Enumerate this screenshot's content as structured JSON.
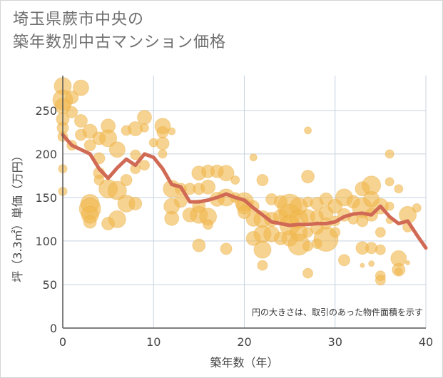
{
  "title_line1": "埼玉県蕨市中央の",
  "title_line2": "築年数別中古マンション価格",
  "chart_data": {
    "type": "scatter",
    "xlabel": "築年数（年）",
    "ylabel": "坪（3.3㎡）単価（万円）",
    "xlim": [
      0,
      40
    ],
    "ylim": [
      0,
      290
    ],
    "xticks": [
      "0",
      "10",
      "20",
      "30",
      "40"
    ],
    "yticks": [
      "0",
      "50",
      "100",
      "150",
      "200",
      "250"
    ],
    "xtick_values": [
      0,
      10,
      20,
      30,
      40
    ],
    "ytick_values": [
      0,
      50,
      100,
      150,
      200,
      250
    ],
    "grid": true,
    "annotation": "円の大きさは、取引のあった物件面積を示す",
    "colors": {
      "bubble_fill": "#f0b84e",
      "bubble_stroke": "#e8a93a",
      "line": "#d06a55",
      "grid": "#c8d3e0",
      "plot_border": "#555555"
    },
    "series": [
      {
        "type": "bubble",
        "points": [
          {
            "x": 0,
            "y": 278,
            "s": 12
          },
          {
            "x": 0,
            "y": 262,
            "s": 14
          },
          {
            "x": 0,
            "y": 255,
            "s": 11
          },
          {
            "x": 0,
            "y": 240,
            "s": 9
          },
          {
            "x": 0,
            "y": 230,
            "s": 8
          },
          {
            "x": 0,
            "y": 220,
            "s": 7
          },
          {
            "x": 0,
            "y": 183,
            "s": 6
          },
          {
            "x": 0,
            "y": 157,
            "s": 6
          },
          {
            "x": 1,
            "y": 265,
            "s": 9
          },
          {
            "x": 1,
            "y": 248,
            "s": 8
          },
          {
            "x": 1,
            "y": 210,
            "s": 7
          },
          {
            "x": 2,
            "y": 276,
            "s": 11
          },
          {
            "x": 2,
            "y": 238,
            "s": 9
          },
          {
            "x": 2,
            "y": 222,
            "s": 8
          },
          {
            "x": 3,
            "y": 226,
            "s": 10
          },
          {
            "x": 3,
            "y": 210,
            "s": 8
          },
          {
            "x": 3,
            "y": 143,
            "s": 13
          },
          {
            "x": 3,
            "y": 137,
            "s": 15
          },
          {
            "x": 3,
            "y": 130,
            "s": 12
          },
          {
            "x": 3,
            "y": 122,
            "s": 9
          },
          {
            "x": 4,
            "y": 218,
            "s": 9
          },
          {
            "x": 4,
            "y": 195,
            "s": 8
          },
          {
            "x": 4,
            "y": 178,
            "s": 8
          },
          {
            "x": 4,
            "y": 170,
            "s": 7
          },
          {
            "x": 5,
            "y": 232,
            "s": 10
          },
          {
            "x": 5,
            "y": 218,
            "s": 12
          },
          {
            "x": 5,
            "y": 160,
            "s": 13
          },
          {
            "x": 5,
            "y": 120,
            "s": 9
          },
          {
            "x": 6,
            "y": 205,
            "s": 11
          },
          {
            "x": 6,
            "y": 158,
            "s": 13
          },
          {
            "x": 6,
            "y": 125,
            "s": 12
          },
          {
            "x": 7,
            "y": 227,
            "s": 7
          },
          {
            "x": 7,
            "y": 170,
            "s": 8
          },
          {
            "x": 7,
            "y": 143,
            "s": 12
          },
          {
            "x": 8,
            "y": 229,
            "s": 10
          },
          {
            "x": 8,
            "y": 199,
            "s": 7
          },
          {
            "x": 8,
            "y": 183,
            "s": 7
          },
          {
            "x": 8,
            "y": 143,
            "s": 9
          },
          {
            "x": 9,
            "y": 242,
            "s": 10
          },
          {
            "x": 9,
            "y": 230,
            "s": 6
          },
          {
            "x": 9,
            "y": 187,
            "s": 7
          },
          {
            "x": 10,
            "y": 213,
            "s": 6
          },
          {
            "x": 11,
            "y": 232,
            "s": 11
          },
          {
            "x": 11,
            "y": 225,
            "s": 8
          },
          {
            "x": 11,
            "y": 212,
            "s": 9
          },
          {
            "x": 11,
            "y": 200,
            "s": 6
          },
          {
            "x": 12,
            "y": 226,
            "s": 5
          },
          {
            "x": 12,
            "y": 160,
            "s": 12
          },
          {
            "x": 12,
            "y": 140,
            "s": 11
          },
          {
            "x": 12,
            "y": 126,
            "s": 10
          },
          {
            "x": 13,
            "y": 160,
            "s": 8
          },
          {
            "x": 13,
            "y": 146,
            "s": 9
          },
          {
            "x": 14,
            "y": 160,
            "s": 8
          },
          {
            "x": 14,
            "y": 130,
            "s": 10
          },
          {
            "x": 15,
            "y": 178,
            "s": 10
          },
          {
            "x": 15,
            "y": 160,
            "s": 8
          },
          {
            "x": 15,
            "y": 140,
            "s": 9
          },
          {
            "x": 15,
            "y": 130,
            "s": 12
          },
          {
            "x": 15,
            "y": 95,
            "s": 9
          },
          {
            "x": 16,
            "y": 180,
            "s": 9
          },
          {
            "x": 16,
            "y": 162,
            "s": 10
          },
          {
            "x": 16,
            "y": 128,
            "s": 12
          },
          {
            "x": 16,
            "y": 119,
            "s": 7
          },
          {
            "x": 17,
            "y": 180,
            "s": 9
          },
          {
            "x": 17,
            "y": 148,
            "s": 10
          },
          {
            "x": 18,
            "y": 178,
            "s": 11
          },
          {
            "x": 18,
            "y": 150,
            "s": 12
          },
          {
            "x": 18,
            "y": 91,
            "s": 8
          },
          {
            "x": 19,
            "y": 170,
            "s": 6
          },
          {
            "x": 19,
            "y": 150,
            "s": 7
          },
          {
            "x": 20,
            "y": 145,
            "s": 13
          },
          {
            "x": 20,
            "y": 140,
            "s": 11
          },
          {
            "x": 20,
            "y": 133,
            "s": 9
          },
          {
            "x": 21,
            "y": 196,
            "s": 5
          },
          {
            "x": 21,
            "y": 140,
            "s": 8
          },
          {
            "x": 21,
            "y": 125,
            "s": 10
          },
          {
            "x": 21,
            "y": 103,
            "s": 10
          },
          {
            "x": 22,
            "y": 170,
            "s": 8
          },
          {
            "x": 22,
            "y": 125,
            "s": 12
          },
          {
            "x": 22,
            "y": 108,
            "s": 12
          },
          {
            "x": 22,
            "y": 90,
            "s": 12
          },
          {
            "x": 22,
            "y": 72,
            "s": 7
          },
          {
            "x": 23,
            "y": 148,
            "s": 8
          },
          {
            "x": 23,
            "y": 125,
            "s": 10
          },
          {
            "x": 23,
            "y": 108,
            "s": 11
          },
          {
            "x": 24,
            "y": 145,
            "s": 9
          },
          {
            "x": 24,
            "y": 128,
            "s": 10
          },
          {
            "x": 24,
            "y": 103,
            "s": 9
          },
          {
            "x": 25,
            "y": 140,
            "s": 17
          },
          {
            "x": 25,
            "y": 130,
            "s": 15
          },
          {
            "x": 25,
            "y": 118,
            "s": 14
          },
          {
            "x": 25,
            "y": 103,
            "s": 11
          },
          {
            "x": 26,
            "y": 140,
            "s": 12
          },
          {
            "x": 26,
            "y": 125,
            "s": 13
          },
          {
            "x": 26,
            "y": 110,
            "s": 12
          },
          {
            "x": 26,
            "y": 96,
            "s": 15
          },
          {
            "x": 27,
            "y": 227,
            "s": 5
          },
          {
            "x": 27,
            "y": 174,
            "s": 9
          },
          {
            "x": 27,
            "y": 145,
            "s": 7
          },
          {
            "x": 27,
            "y": 128,
            "s": 10
          },
          {
            "x": 27,
            "y": 110,
            "s": 7
          },
          {
            "x": 27,
            "y": 94,
            "s": 7
          },
          {
            "x": 27,
            "y": 63,
            "s": 7
          },
          {
            "x": 28,
            "y": 143,
            "s": 9
          },
          {
            "x": 28,
            "y": 128,
            "s": 9
          },
          {
            "x": 28,
            "y": 115,
            "s": 9
          },
          {
            "x": 28,
            "y": 97,
            "s": 7
          },
          {
            "x": 29,
            "y": 148,
            "s": 9
          },
          {
            "x": 29,
            "y": 132,
            "s": 10
          },
          {
            "x": 29,
            "y": 120,
            "s": 8
          },
          {
            "x": 29,
            "y": 102,
            "s": 17
          },
          {
            "x": 30,
            "y": 140,
            "s": 10
          },
          {
            "x": 30,
            "y": 123,
            "s": 7
          },
          {
            "x": 30,
            "y": 110,
            "s": 7
          },
          {
            "x": 31,
            "y": 150,
            "s": 12
          },
          {
            "x": 31,
            "y": 130,
            "s": 9
          },
          {
            "x": 31,
            "y": 78,
            "s": 8
          },
          {
            "x": 32,
            "y": 145,
            "s": 9
          },
          {
            "x": 32,
            "y": 125,
            "s": 7
          },
          {
            "x": 33,
            "y": 160,
            "s": 10
          },
          {
            "x": 33,
            "y": 138,
            "s": 14
          },
          {
            "x": 33,
            "y": 123,
            "s": 8
          },
          {
            "x": 33,
            "y": 92,
            "s": 9
          },
          {
            "x": 33,
            "y": 72,
            "s": 3
          },
          {
            "x": 34,
            "y": 164,
            "s": 13
          },
          {
            "x": 34,
            "y": 148,
            "s": 11
          },
          {
            "x": 34,
            "y": 130,
            "s": 9
          },
          {
            "x": 34,
            "y": 92,
            "s": 8
          },
          {
            "x": 34,
            "y": 74,
            "s": 4
          },
          {
            "x": 35,
            "y": 140,
            "s": 11
          },
          {
            "x": 35,
            "y": 110,
            "s": 7
          },
          {
            "x": 35,
            "y": 90,
            "s": 7
          },
          {
            "x": 35,
            "y": 60,
            "s": 7
          },
          {
            "x": 35,
            "y": 55,
            "s": 7
          },
          {
            "x": 36,
            "y": 200,
            "s": 6
          },
          {
            "x": 36,
            "y": 168,
            "s": 6
          },
          {
            "x": 36,
            "y": 140,
            "s": 6
          },
          {
            "x": 36,
            "y": 124,
            "s": 5
          },
          {
            "x": 37,
            "y": 160,
            "s": 6
          },
          {
            "x": 37,
            "y": 80,
            "s": 11
          },
          {
            "x": 37,
            "y": 67,
            "s": 9
          },
          {
            "x": 37,
            "y": 65,
            "s": 5
          },
          {
            "x": 38,
            "y": 130,
            "s": 12
          },
          {
            "x": 38,
            "y": 116,
            "s": 7
          },
          {
            "x": 38,
            "y": 75,
            "s": 3
          },
          {
            "x": 39,
            "y": 138,
            "s": 6
          }
        ]
      },
      {
        "type": "line",
        "x": [
          0,
          1,
          2,
          3,
          4,
          5,
          6,
          7,
          8,
          9,
          10,
          11,
          12,
          13,
          14,
          15,
          16,
          17,
          18,
          19,
          20,
          21,
          22,
          23,
          24,
          25,
          26,
          27,
          28,
          29,
          30,
          31,
          32,
          33,
          34,
          35,
          36,
          37,
          38,
          39,
          40
        ],
        "y": [
          222,
          210,
          205,
          200,
          183,
          172,
          184,
          194,
          187,
          200,
          196,
          183,
          165,
          162,
          145,
          145,
          147,
          150,
          154,
          150,
          147,
          138,
          130,
          122,
          120,
          118,
          119,
          119,
          120,
          120,
          122,
          128,
          131,
          132,
          130,
          140,
          128,
          120,
          123,
          107,
          92
        ]
      }
    ]
  }
}
